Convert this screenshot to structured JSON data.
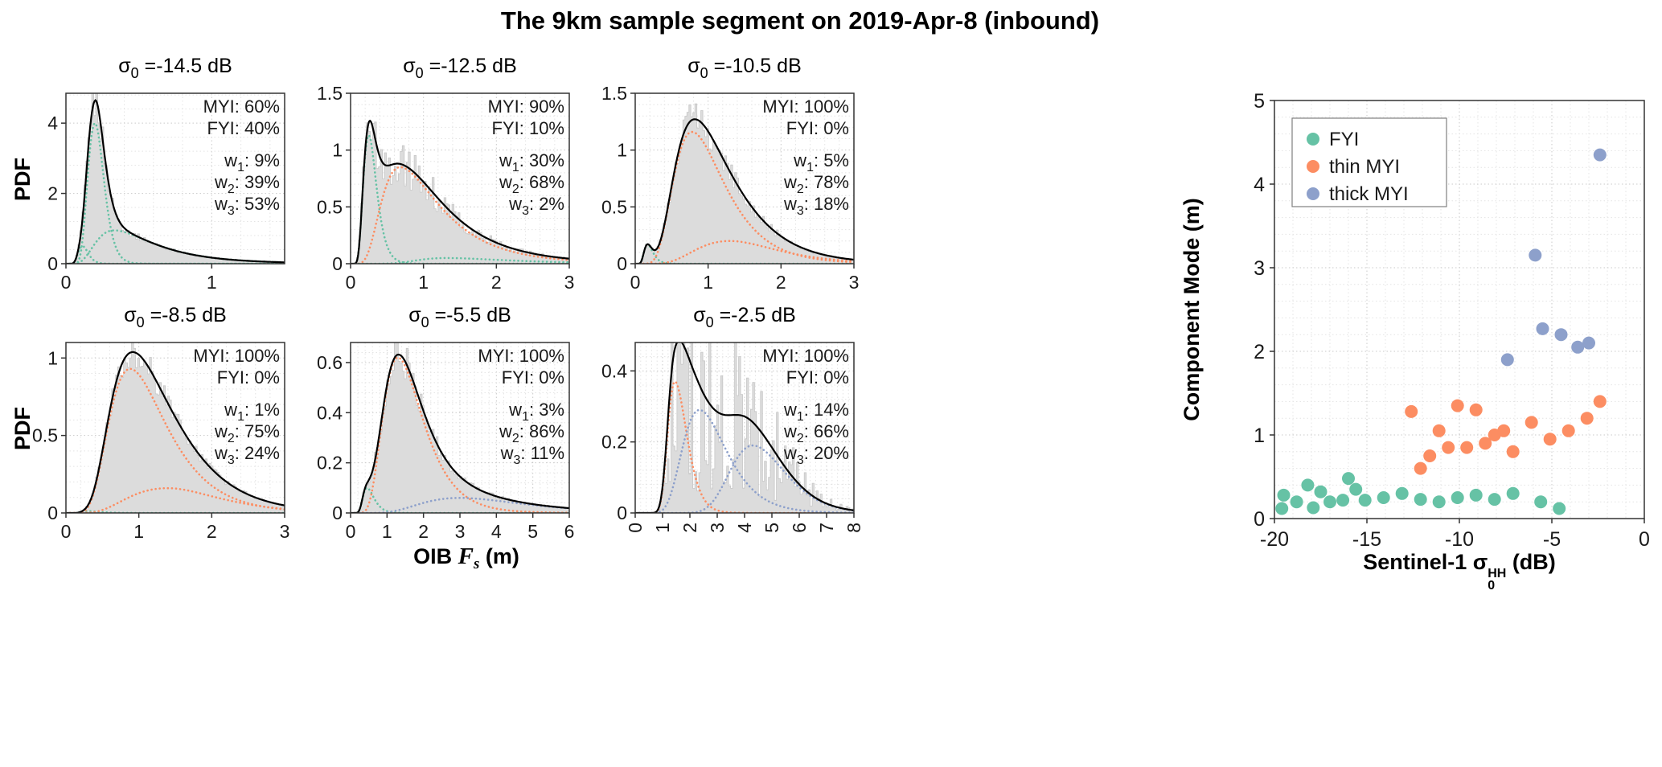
{
  "page_title": "The 9km sample segment on 2019-Apr-8 (inbound)",
  "labels": {
    "pdf_ylabel": "PDF",
    "oib_xlabel": {
      "pre": "OIB ",
      "var": "F",
      "sub": "s",
      "post": " (m)"
    },
    "sigma_sym": "σ",
    "sigma_sub": "0",
    "sigma_eq": " ="
  },
  "colors": {
    "fyi": "#66c2a5",
    "thin_myi": "#fc8d62",
    "thick_myi": "#8da0cb",
    "mixture": "#000000",
    "hist": "#dcdcdc",
    "hist_edge": "#c6c6c6",
    "grid_major": "#c9c9c9",
    "grid_minor": "#e4e4e4",
    "axis": "#333333",
    "text": "#1a1a1a"
  },
  "chart_data": [
    {
      "type": "area",
      "id": "sigma-14p5",
      "sigma_value": "-14.5 dB",
      "xlim": [
        0,
        1.5
      ],
      "ylim": [
        0,
        4.85
      ],
      "xticks": [
        0,
        1
      ],
      "xtick_labels": [
        "0",
        "1"
      ],
      "yticks": [
        0,
        2,
        4
      ],
      "ytick_labels": [
        "0",
        "2",
        "4"
      ],
      "rotate_xticks": false,
      "noise": 0.12,
      "grid": true,
      "annotations": {
        "myi": "MYI: 60%",
        "fyi": "FYI: 40%",
        "w": [
          {
            "base": "w",
            "sub": "1",
            "rest": ": 9%"
          },
          {
            "base": "w",
            "sub": "2",
            "rest": ": 39%"
          },
          {
            "base": "w",
            "sub": "3",
            "rest": ": 53%"
          }
        ]
      },
      "components": [
        {
          "part": "FYI",
          "color": "fyi",
          "mode": 0.115,
          "height": 0.5,
          "wl": 0.32,
          "wr": 0.28
        },
        {
          "part": "FYI",
          "color": "fyi",
          "mode": 0.2,
          "height": 4.0,
          "wl": 0.3,
          "wr": 0.26
        },
        {
          "part": "FYI",
          "color": "fyi",
          "mode": 0.33,
          "height": 0.95,
          "wl": 0.5,
          "wr": 0.6
        }
      ]
    },
    {
      "type": "area",
      "id": "sigma-12p5",
      "sigma_value": "-12.5 dB",
      "xlim": [
        0,
        3
      ],
      "ylim": [
        0,
        1.5
      ],
      "xticks": [
        0,
        1,
        2,
        3
      ],
      "xtick_labels": [
        "0",
        "1",
        "2",
        "3"
      ],
      "yticks": [
        0,
        0.5,
        1,
        1.5
      ],
      "ytick_labels": [
        "0",
        "0.5",
        "1",
        "1.5"
      ],
      "rotate_xticks": false,
      "noise": 0.22,
      "grid": true,
      "annotations": {
        "myi": "MYI: 90%",
        "fyi": "FYI: 10%",
        "w": [
          {
            "base": "w",
            "sub": "1",
            "rest": ": 30%"
          },
          {
            "base": "w",
            "sub": "2",
            "rest": ": 68%"
          },
          {
            "base": "w",
            "sub": "3",
            "rest": ": 2%"
          }
        ]
      },
      "components": [
        {
          "part": "FYI",
          "color": "fyi",
          "mode": 0.25,
          "height": 1.13,
          "wl": 0.38,
          "wr": 0.35
        },
        {
          "part": "thin MYI",
          "color": "thin_myi",
          "mode": 0.68,
          "height": 0.85,
          "wl": 0.5,
          "wr": 0.58
        },
        {
          "part": "FYI",
          "color": "fyi",
          "mode": 1.3,
          "height": 0.05,
          "wl": 0.35,
          "wr": 0.5
        }
      ]
    },
    {
      "type": "area",
      "id": "sigma-10p5",
      "sigma_value": "-10.5 dB",
      "xlim": [
        0,
        3
      ],
      "ylim": [
        0,
        1.5
      ],
      "xticks": [
        0,
        1,
        2,
        3
      ],
      "xtick_labels": [
        "0",
        "1",
        "2",
        "3"
      ],
      "yticks": [
        0,
        0.5,
        1,
        1.5
      ],
      "ytick_labels": [
        "0",
        "0.5",
        "1",
        "1.5"
      ],
      "rotate_xticks": false,
      "noise": 0.12,
      "grid": true,
      "annotations": {
        "myi": "MYI: 100%",
        "fyi": "FYI: 0%",
        "w": [
          {
            "base": "w",
            "sub": "1",
            "rest": ": 5%"
          },
          {
            "base": "w",
            "sub": "2",
            "rest": ": 78%"
          },
          {
            "base": "w",
            "sub": "3",
            "rest": ": 18%"
          }
        ]
      },
      "components": [
        {
          "part": "FYI",
          "color": "fyi",
          "mode": 0.17,
          "height": 0.17,
          "wl": 0.35,
          "wr": 0.35
        },
        {
          "part": "thin MYI",
          "color": "thin_myi",
          "mode": 0.78,
          "height": 1.16,
          "wl": 0.42,
          "wr": 0.45
        },
        {
          "part": "thin MYI",
          "color": "thin_myi",
          "mode": 1.3,
          "height": 0.2,
          "wl": 0.45,
          "wr": 0.4
        }
      ]
    },
    {
      "type": "area",
      "id": "sigma-8p5",
      "sigma_value": "-8.5 dB",
      "xlim": [
        0,
        3
      ],
      "ylim": [
        0,
        1.1
      ],
      "xticks": [
        0,
        1,
        2,
        3
      ],
      "xtick_labels": [
        "0",
        "1",
        "2",
        "3"
      ],
      "yticks": [
        0,
        0.5,
        1
      ],
      "ytick_labels": [
        "0",
        "0.5",
        "1"
      ],
      "rotate_xticks": false,
      "noise": 0.1,
      "grid": true,
      "annotations": {
        "myi": "MYI: 100%",
        "fyi": "FYI: 0%",
        "w": [
          {
            "base": "w",
            "sub": "1",
            "rest": ": 1%"
          },
          {
            "base": "w",
            "sub": "2",
            "rest": ": 75%"
          },
          {
            "base": "w",
            "sub": "3",
            "rest": ": 24%"
          }
        ]
      },
      "components": [
        {
          "part": "FYI",
          "color": "fyi",
          "mode": 0.3,
          "height": 0.012,
          "wl": 0.3,
          "wr": 0.4
        },
        {
          "part": "thin MYI",
          "color": "thin_myi",
          "mode": 0.88,
          "height": 0.93,
          "wl": 0.42,
          "wr": 0.45
        },
        {
          "part": "thin MYI",
          "color": "thin_myi",
          "mode": 1.4,
          "height": 0.16,
          "wl": 0.5,
          "wr": 0.4
        }
      ]
    },
    {
      "type": "area",
      "id": "sigma-5p5",
      "sigma_value": "-5.5 dB",
      "xlim": [
        0,
        6
      ],
      "ylim": [
        0,
        0.68
      ],
      "xticks": [
        0,
        1,
        2,
        3,
        4,
        5,
        6
      ],
      "xtick_labels": [
        "0",
        "1",
        "2",
        "3",
        "4",
        "5",
        "6"
      ],
      "yticks": [
        0,
        0.2,
        0.4,
        0.6
      ],
      "ytick_labels": [
        "0",
        "0.2",
        "0.4",
        "0.6"
      ],
      "rotate_xticks": false,
      "noise": 0.12,
      "grid": true,
      "annotations": {
        "myi": "MYI: 100%",
        "fyi": "FYI: 0%",
        "w": [
          {
            "base": "w",
            "sub": "1",
            "rest": ": 3%"
          },
          {
            "base": "w",
            "sub": "2",
            "rest": ": 86%"
          },
          {
            "base": "w",
            "sub": "3",
            "rest": ": 11%"
          }
        ]
      },
      "components": [
        {
          "part": "FYI",
          "color": "fyi",
          "mode": 0.45,
          "height": 0.1,
          "wl": 0.3,
          "wr": 0.35
        },
        {
          "part": "thin MYI",
          "color": "thin_myi",
          "mode": 1.3,
          "height": 0.62,
          "wl": 0.4,
          "wr": 0.42
        },
        {
          "part": "thick MYI",
          "color": "thick_myi",
          "mode": 3.0,
          "height": 0.06,
          "wl": 0.45,
          "wr": 0.45
        }
      ]
    },
    {
      "type": "area",
      "id": "sigma-2p5",
      "sigma_value": "-2.5 dB",
      "xlim": [
        0,
        8
      ],
      "ylim": [
        0,
        0.48
      ],
      "xticks": [
        0,
        1,
        2,
        3,
        4,
        5,
        6,
        7,
        8
      ],
      "xtick_labels": [
        "0",
        "1",
        "2",
        "3",
        "4",
        "5",
        "6",
        "7",
        "8"
      ],
      "yticks": [
        0,
        0.2,
        0.4
      ],
      "ytick_labels": [
        "0",
        "0.2",
        "0.4"
      ],
      "rotate_xticks": true,
      "noise": 0.85,
      "grid": true,
      "annotations": {
        "myi": "MYI: 100%",
        "fyi": "FYI: 0%",
        "w": [
          {
            "base": "w",
            "sub": "1",
            "rest": ": 14%"
          },
          {
            "base": "w",
            "sub": "2",
            "rest": ": 66%"
          },
          {
            "base": "w",
            "sub": "3",
            "rest": ": 20%"
          }
        ]
      },
      "components": [
        {
          "part": "thin MYI",
          "color": "thin_myi",
          "mode": 1.45,
          "height": 0.37,
          "wl": 0.2,
          "wr": 0.26
        },
        {
          "part": "thick MYI",
          "color": "thick_myi",
          "mode": 2.35,
          "height": 0.29,
          "wl": 0.32,
          "wr": 0.35
        },
        {
          "part": "thick MYI",
          "color": "thick_myi",
          "mode": 4.3,
          "height": 0.19,
          "wl": 0.22,
          "wr": 0.24
        }
      ]
    },
    {
      "type": "scatter",
      "id": "component-modes",
      "xlabel": {
        "pre": "Sentinel-1 ",
        "sym": "σ",
        "sub": "0",
        "sup": "HH",
        "post": " (dB)"
      },
      "ylabel": "Component Mode (m)",
      "xlim": [
        -20,
        0
      ],
      "ylim": [
        0,
        5
      ],
      "xticks": [
        -20,
        -15,
        -10,
        -5,
        0
      ],
      "xtick_labels": [
        "-20",
        "-15",
        "-10",
        "-5",
        "0"
      ],
      "yticks": [
        0,
        1,
        2,
        3,
        4,
        5
      ],
      "ytick_labels": [
        "0",
        "1",
        "2",
        "3",
        "4",
        "5"
      ],
      "legend": [
        {
          "label": "FYI",
          "color": "fyi"
        },
        {
          "label": "thin MYI",
          "color": "thin_myi"
        },
        {
          "label": "thick MYI",
          "color": "thick_myi"
        }
      ],
      "series": [
        {
          "name": "FYI",
          "color": "fyi",
          "points": [
            [
              -19.6,
              0.12
            ],
            [
              -19.5,
              0.28
            ],
            [
              -18.8,
              0.2
            ],
            [
              -18.2,
              0.4
            ],
            [
              -17.9,
              0.13
            ],
            [
              -17.5,
              0.32
            ],
            [
              -17,
              0.2
            ],
            [
              -16.3,
              0.22
            ],
            [
              -16,
              0.48
            ],
            [
              -15.6,
              0.35
            ],
            [
              -15.1,
              0.22
            ],
            [
              -14.1,
              0.25
            ],
            [
              -13.1,
              0.3
            ],
            [
              -12.1,
              0.23
            ],
            [
              -11.1,
              0.2
            ],
            [
              -10.1,
              0.25
            ],
            [
              -9.1,
              0.28
            ],
            [
              -8.1,
              0.23
            ],
            [
              -7.1,
              0.3
            ],
            [
              -5.6,
              0.2
            ],
            [
              -4.6,
              0.12
            ]
          ]
        },
        {
          "name": "thin MYI",
          "color": "thin_myi",
          "points": [
            [
              -12.6,
              1.28
            ],
            [
              -12.1,
              0.6
            ],
            [
              -11.6,
              0.75
            ],
            [
              -11.1,
              1.05
            ],
            [
              -10.6,
              0.85
            ],
            [
              -10.1,
              1.35
            ],
            [
              -9.6,
              0.85
            ],
            [
              -9.1,
              1.3
            ],
            [
              -8.6,
              0.9
            ],
            [
              -8.1,
              1.0
            ],
            [
              -7.6,
              1.05
            ],
            [
              -7.1,
              0.8
            ],
            [
              -6.1,
              1.15
            ],
            [
              -5.1,
              0.95
            ],
            [
              -4.1,
              1.05
            ],
            [
              -3.1,
              1.2
            ],
            [
              -2.4,
              1.4
            ]
          ]
        },
        {
          "name": "thick MYI",
          "color": "thick_myi",
          "points": [
            [
              -7.4,
              1.9
            ],
            [
              -5.9,
              3.15
            ],
            [
              -5.5,
              2.27
            ],
            [
              -4.5,
              2.2
            ],
            [
              -3.6,
              2.05
            ],
            [
              -3.0,
              2.1
            ],
            [
              -2.4,
              4.35
            ]
          ]
        }
      ]
    }
  ]
}
